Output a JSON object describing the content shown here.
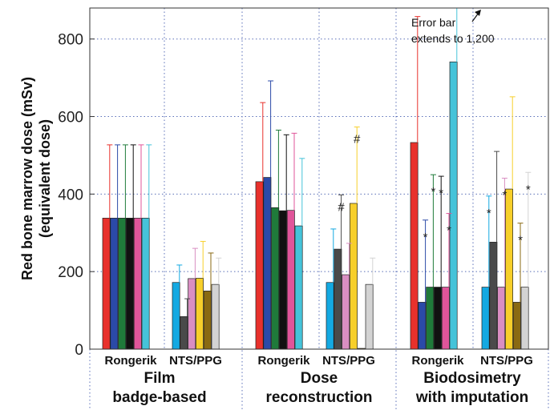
{
  "chart_data": {
    "type": "bar",
    "title": "",
    "xlabel": "",
    "ylabel_lines": [
      "Red bone marrow dose (mSv)",
      "(equivalent dose)"
    ],
    "ylim": [
      0,
      880
    ],
    "yticks": [
      0,
      200,
      400,
      600,
      800
    ],
    "grid": true,
    "series_colors": [
      "#e8312c",
      "#2b4aa8",
      "#1f7a3a",
      "#111111",
      "#e0559a",
      "#45c3d9",
      "#14a9e2",
      "#4a4a4a",
      "#d98ec2",
      "#f7cf2a",
      "#8a6a12",
      "#d3d3d3"
    ],
    "panels": [
      {
        "title_lines": [
          "Film",
          "badge-based"
        ],
        "groups": [
          {
            "label": "Rongerik",
            "bars": [
              {
                "color": "#e8312c",
                "value": 338,
                "err": 527
              },
              {
                "color": "#2b4aa8",
                "value": 338,
                "err": 527
              },
              {
                "color": "#1f7a3a",
                "value": 338,
                "err": 527
              },
              {
                "color": "#111111",
                "value": 338,
                "err": 527
              },
              {
                "color": "#e0559a",
                "value": 338,
                "err": 527
              },
              {
                "color": "#45c3d9",
                "value": 338,
                "err": 527
              }
            ]
          },
          {
            "label": "NTS/PPG",
            "bars": [
              {
                "color": "#14a9e2",
                "value": 172,
                "err": 217
              },
              {
                "color": "#4a4a4a",
                "value": 84,
                "err": 130
              },
              {
                "color": "#d98ec2",
                "value": 182,
                "err": 260
              },
              {
                "color": "#f7cf2a",
                "value": 183,
                "err": 278
              },
              {
                "color": "#8a6a12",
                "value": 150,
                "err": 248
              },
              {
                "color": "#d3d3d3",
                "value": 167,
                "err": 235
              }
            ]
          }
        ]
      },
      {
        "title_lines": [
          "Dose",
          "reconstruction"
        ],
        "groups": [
          {
            "label": "Rongerik",
            "bars": [
              {
                "color": "#e8312c",
                "value": 432,
                "err": 636
              },
              {
                "color": "#2b4aa8",
                "value": 443,
                "err": 692
              },
              {
                "color": "#1f7a3a",
                "value": 365,
                "err": 565
              },
              {
                "color": "#111111",
                "value": 357,
                "err": 553
              },
              {
                "color": "#e0559a",
                "value": 358,
                "err": 557
              },
              {
                "color": "#45c3d9",
                "value": 318,
                "err": 492
              }
            ]
          },
          {
            "label": "NTS/PPG",
            "bars": [
              {
                "color": "#14a9e2",
                "value": 172,
                "err": 310
              },
              {
                "color": "#4a4a4a",
                "value": 258,
                "err": 398,
                "mark": "#"
              },
              {
                "color": "#d98ec2",
                "value": 192,
                "err": 273
              },
              {
                "color": "#f7cf2a",
                "value": 376,
                "err": 573,
                "mark": "#"
              },
              {
                "color": "#8a6a12",
                "value": 2,
                "err": 2
              },
              {
                "color": "#d3d3d3",
                "value": 167,
                "err": 235
              }
            ]
          }
        ]
      },
      {
        "title_lines": [
          "Biodosimetry",
          "with imputation"
        ],
        "groups": [
          {
            "label": "Rongerik",
            "bars": [
              {
                "color": "#e8312c",
                "value": 533,
                "err": 858
              },
              {
                "color": "#2b4aa8",
                "value": 121,
                "err": 333,
                "mark": "*"
              },
              {
                "color": "#1f7a3a",
                "value": 160,
                "err": 450,
                "mark": "*"
              },
              {
                "color": "#111111",
                "value": 160,
                "err": 446,
                "mark": "*"
              },
              {
                "color": "#e0559a",
                "value": 160,
                "err": 350,
                "mark": "*"
              },
              {
                "color": "#45c3d9",
                "value": 741,
                "err": 1200
              }
            ]
          },
          {
            "label": "NTS/PPG",
            "bars": [
              {
                "color": "#14a9e2",
                "value": 160,
                "err": 395,
                "mark": "*"
              },
              {
                "color": "#4a4a4a",
                "value": 276,
                "err": 510
              },
              {
                "color": "#d98ec2",
                "value": 160,
                "err": 441,
                "mark": "*"
              },
              {
                "color": "#f7cf2a",
                "value": 413,
                "err": 651
              },
              {
                "color": "#8a6a12",
                "value": 121,
                "err": 325,
                "mark": "*"
              },
              {
                "color": "#d3d3d3",
                "value": 160,
                "err": 456,
                "mark": "*"
              }
            ]
          }
        ]
      }
    ],
    "annotation": {
      "lines": [
        "Error bar",
        "extends to 1,200"
      ]
    }
  }
}
